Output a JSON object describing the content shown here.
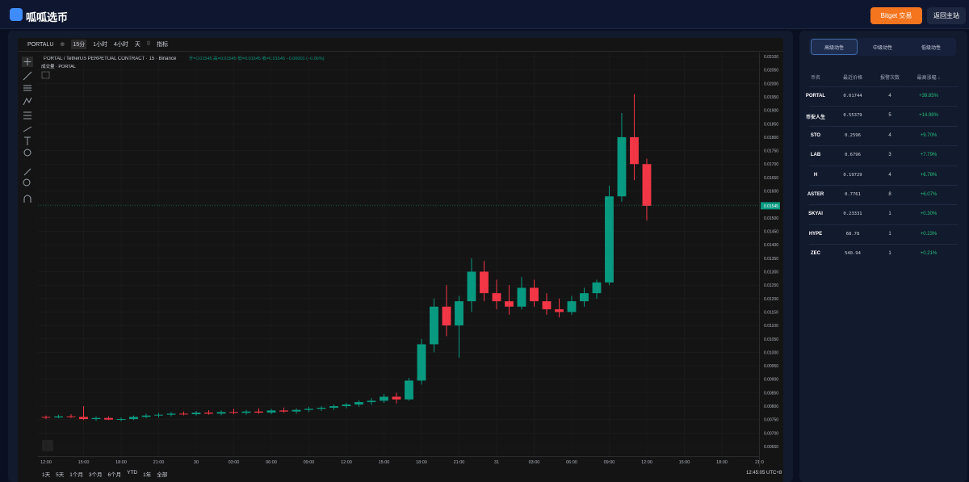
{
  "header": {
    "title": "呱呱选币",
    "buttons": [
      "Bitget 交易",
      "返回主站"
    ]
  },
  "toolbar": {
    "symbol": "PORTALU",
    "intervals": [
      "15分",
      "1小时",
      "4小时",
      "天"
    ],
    "indicators": "指标"
  },
  "chart_data": {
    "type": "candlestick",
    "title": "PORTAL / TetherUS PERPETUAL CONTRACT · 15 · Binance",
    "ohlc_text": "开=0.01545 高=0.01545 低=0.01545 收=0.01545 −0.00001 (−0.06%)",
    "volume_text": "成交量 · PORTAL",
    "up_color": "#089981",
    "down_color": "#f23645",
    "grid": true,
    "x": [
      0,
      1,
      2,
      3,
      4,
      5,
      6,
      7,
      8,
      9,
      10,
      11,
      12,
      13,
      14,
      15,
      16,
      17,
      18,
      19,
      20,
      21,
      22,
      23,
      24,
      25,
      26,
      27,
      28,
      29,
      30,
      31,
      32,
      33,
      34,
      35,
      36,
      37,
      38,
      39,
      40,
      41,
      42,
      43,
      44,
      45,
      46,
      47,
      48
    ],
    "open": [
      0.0076,
      0.00758,
      0.00762,
      0.0076,
      0.00752,
      0.00756,
      0.0075,
      0.00752,
      0.0076,
      0.00765,
      0.00768,
      0.00772,
      0.0077,
      0.00776,
      0.00772,
      0.00778,
      0.00775,
      0.0078,
      0.00776,
      0.00784,
      0.0078,
      0.00786,
      0.0079,
      0.00794,
      0.008,
      0.00806,
      0.00815,
      0.0082,
      0.00835,
      0.00825,
      0.00895,
      0.0103,
      0.0117,
      0.011,
      0.0119,
      0.013,
      0.0122,
      0.0119,
      0.0117,
      0.0124,
      0.0119,
      0.0116,
      0.0115,
      0.0119,
      0.0122,
      0.0126,
      0.0158,
      0.018,
      0.017
    ],
    "high": [
      0.00765,
      0.00768,
      0.0077,
      0.008,
      0.00762,
      0.00762,
      0.00758,
      0.00765,
      0.00772,
      0.00775,
      0.00778,
      0.0078,
      0.00782,
      0.00785,
      0.00784,
      0.0079,
      0.00786,
      0.00792,
      0.0079,
      0.00795,
      0.00792,
      0.00798,
      0.008,
      0.00806,
      0.00812,
      0.00822,
      0.0083,
      0.00845,
      0.0085,
      0.00905,
      0.0105,
      0.012,
      0.0125,
      0.0121,
      0.0135,
      0.0134,
      0.0127,
      0.0125,
      0.0128,
      0.0127,
      0.0122,
      0.012,
      0.0121,
      0.0124,
      0.0127,
      0.0162,
      0.0189,
      0.0196,
      0.0172
    ],
    "low": [
      0.00752,
      0.00755,
      0.00756,
      0.00748,
      0.00745,
      0.00748,
      0.00744,
      0.00748,
      0.00755,
      0.00758,
      0.00762,
      0.00766,
      0.00765,
      0.00768,
      0.00766,
      0.0077,
      0.00768,
      0.00772,
      0.0077,
      0.00775,
      0.00772,
      0.00778,
      0.00782,
      0.00786,
      0.00792,
      0.00798,
      0.00805,
      0.00812,
      0.0081,
      0.0082,
      0.0088,
      0.01,
      0.0106,
      0.0098,
      0.0115,
      0.0119,
      0.0116,
      0.0114,
      0.0116,
      0.0117,
      0.0114,
      0.0113,
      0.0114,
      0.0117,
      0.012,
      0.0125,
      0.0156,
      0.0164,
      0.0149
    ],
    "close": [
      0.00758,
      0.00762,
      0.0076,
      0.00752,
      0.00756,
      0.0075,
      0.00752,
      0.0076,
      0.00765,
      0.00768,
      0.00772,
      0.0077,
      0.00776,
      0.00772,
      0.00778,
      0.00775,
      0.0078,
      0.00776,
      0.00784,
      0.0078,
      0.00786,
      0.0079,
      0.00794,
      0.008,
      0.00806,
      0.00815,
      0.0082,
      0.00835,
      0.00825,
      0.00895,
      0.0103,
      0.0117,
      0.011,
      0.0119,
      0.013,
      0.0122,
      0.0119,
      0.0117,
      0.0124,
      0.0119,
      0.0116,
      0.0115,
      0.0119,
      0.0122,
      0.0126,
      0.0158,
      0.018,
      0.017,
      0.01545
    ],
    "last_price": {
      "value": 0.01545,
      "label": "0.01545"
    },
    "xlim": [
      -0.645,
      56.97
    ],
    "xticks": [
      {
        "value": 0,
        "label": "12:00"
      },
      {
        "value": 3,
        "label": "15:00"
      },
      {
        "value": 6,
        "label": "18:00"
      },
      {
        "value": 9,
        "label": "21:00"
      },
      {
        "value": 12,
        "label": "30"
      },
      {
        "value": 15,
        "label": "03:00"
      },
      {
        "value": 18,
        "label": "06:00"
      },
      {
        "value": 21,
        "label": "09:00"
      },
      {
        "value": 24,
        "label": "12:00"
      },
      {
        "value": 27,
        "label": "15:00"
      },
      {
        "value": 30,
        "label": "18:00"
      },
      {
        "value": 33,
        "label": "21:00"
      },
      {
        "value": 36,
        "label": "31"
      },
      {
        "value": 39,
        "label": "03:00"
      },
      {
        "value": 42,
        "label": "06:00"
      },
      {
        "value": 45,
        "label": "09:00"
      },
      {
        "value": 48,
        "label": "12:00"
      },
      {
        "value": 51,
        "label": "15:00"
      },
      {
        "value": 54,
        "label": "18:00"
      },
      {
        "value": 57,
        "label": "21:0"
      }
    ],
    "ylim": [
      0.00614,
      0.02115
    ],
    "yticks": [
      {
        "value": 0.0065,
        "label": "0.00650"
      },
      {
        "value": 0.007,
        "label": "0.00700"
      },
      {
        "value": 0.0075,
        "label": "0.00750"
      },
      {
        "value": 0.008,
        "label": "0.00800"
      },
      {
        "value": 0.0085,
        "label": "0.00850"
      },
      {
        "value": 0.009,
        "label": "0.00900"
      },
      {
        "value": 0.0095,
        "label": "0.00950"
      },
      {
        "value": 0.01,
        "label": "0.01000"
      },
      {
        "value": 0.0105,
        "label": "0.01050"
      },
      {
        "value": 0.011,
        "label": "0.01100"
      },
      {
        "value": 0.0115,
        "label": "0.01150"
      },
      {
        "value": 0.012,
        "label": "0.01200"
      },
      {
        "value": 0.0125,
        "label": "0.01250"
      },
      {
        "value": 0.013,
        "label": "0.01300"
      },
      {
        "value": 0.0135,
        "label": "0.01350"
      },
      {
        "value": 0.014,
        "label": "0.01400"
      },
      {
        "value": 0.0145,
        "label": "0.01450"
      },
      {
        "value": 0.015,
        "label": "0.01500"
      },
      {
        "value": 0.0155,
        "label": "0.01550"
      },
      {
        "value": 0.016,
        "label": "0.01600"
      },
      {
        "value": 0.0165,
        "label": "0.01650"
      },
      {
        "value": 0.017,
        "label": "0.01700"
      },
      {
        "value": 0.0175,
        "label": "0.01750"
      },
      {
        "value": 0.018,
        "label": "0.01800"
      },
      {
        "value": 0.0185,
        "label": "0.01850"
      },
      {
        "value": 0.019,
        "label": "0.01900"
      },
      {
        "value": 0.0195,
        "label": "0.01950"
      },
      {
        "value": 0.02,
        "label": "0.02000"
      },
      {
        "value": 0.0205,
        "label": "0.02050"
      },
      {
        "value": 0.021,
        "label": "0.02100"
      }
    ]
  },
  "ranges": [
    "1天",
    "5天",
    "1个月",
    "3个月",
    "6个月",
    "YTD",
    "1年",
    "全部"
  ],
  "clock": "12:45:05 UTC+8",
  "panel": {
    "tabs": [
      "高级动性",
      "中级动性",
      "低级动性"
    ],
    "columns": [
      "币名",
      "最近价格",
      "报警次数",
      "最高涨幅 ↓"
    ],
    "rows": [
      [
        "PORTAL",
        "0.01744",
        "4",
        "+39.85%"
      ],
      [
        "币安人生",
        "0.55379",
        "5",
        "+14.98%"
      ],
      [
        "STO",
        "0.2596",
        "4",
        "+9.70%"
      ],
      [
        "LAB",
        "0.6796",
        "3",
        "+7.79%"
      ],
      [
        "H",
        "0.19729",
        "4",
        "+6.78%"
      ],
      [
        "ASTER",
        "0.7761",
        "8",
        "+6.07%"
      ],
      [
        "SKYAI",
        "0.23331",
        "1",
        "+0.30%"
      ],
      [
        "HYPE",
        "68.78",
        "1",
        "+0.23%"
      ],
      [
        "ZEC",
        "540.94",
        "1",
        "+0.21%"
      ]
    ]
  }
}
